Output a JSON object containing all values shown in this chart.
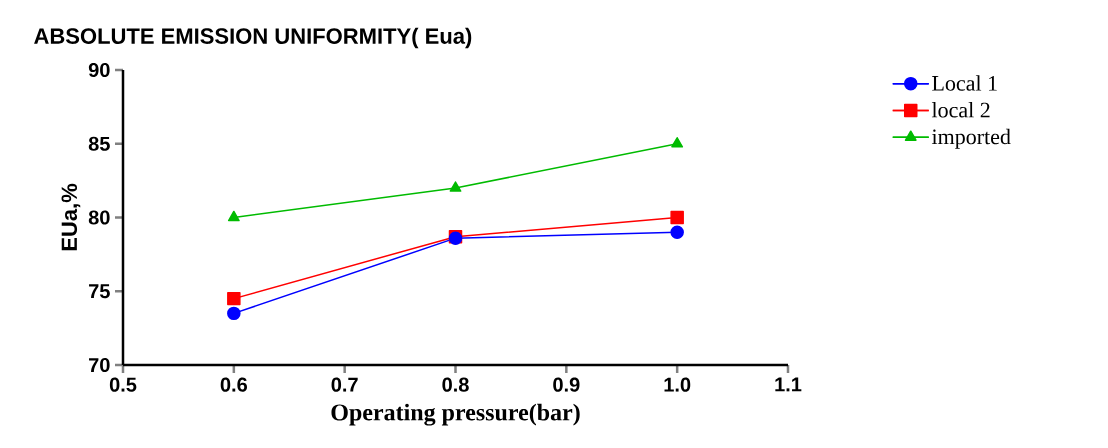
{
  "chart_data": {
    "type": "line",
    "title": "ABSOLUTE EMISSION UNIFORMITY(  Eua)",
    "xlabel": "Operating pressure(bar)",
    "ylabel": "EUa,%",
    "x": [
      0.6,
      0.8,
      1.0
    ],
    "series": [
      {
        "name": "Local 1",
        "color": "#0000ff",
        "marker": "circle",
        "values": [
          73.5,
          78.6,
          79.0
        ]
      },
      {
        "name": "local 2",
        "color": "#ff0000",
        "marker": "square",
        "values": [
          74.5,
          78.7,
          80.0
        ]
      },
      {
        "name": "imported",
        "color": "#00bb00",
        "marker": "triangle",
        "values": [
          80.0,
          82.0,
          85.0
        ]
      }
    ],
    "xlim": [
      0.5,
      1.1
    ],
    "ylim": [
      70,
      90
    ],
    "xticks": [
      0.5,
      0.6,
      0.7,
      0.8,
      0.9,
      {
        "value": 1.0,
        "label": "1.0"
      },
      1.1
    ],
    "yticks": [
      70,
      75,
      80,
      85,
      90
    ],
    "grid": false,
    "legend": "top right",
    "line_style": "solid"
  }
}
